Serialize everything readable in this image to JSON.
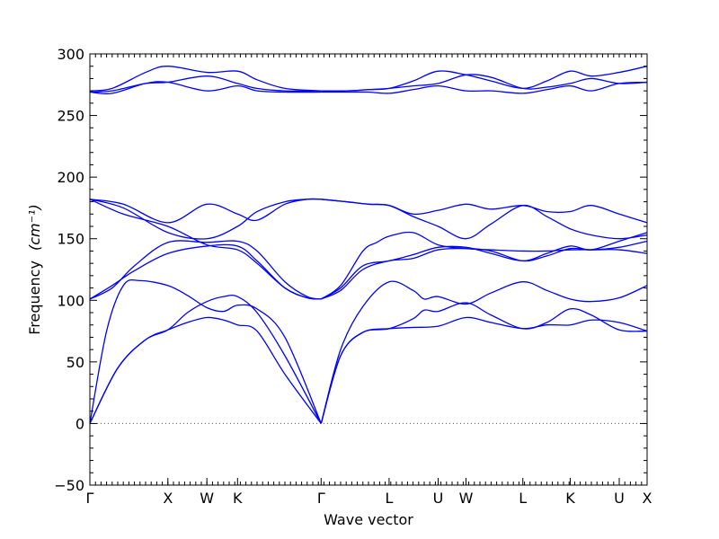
{
  "chart_data": {
    "type": "line",
    "xlabel": "Wave vector",
    "ylabel": "Frequency",
    "ylabel_unit": "(cm⁻¹)",
    "ylim": [
      -50,
      300
    ],
    "yticks": [
      -50,
      0,
      50,
      100,
      150,
      200,
      250,
      300
    ],
    "xlim": [
      0,
      1
    ],
    "xticks": [
      {
        "label": "Γ",
        "x": 0.0
      },
      {
        "label": "X",
        "x": 0.14
      },
      {
        "label": "W",
        "x": 0.21
      },
      {
        "label": "K",
        "x": 0.265
      },
      {
        "label": "Γ",
        "x": 0.415
      },
      {
        "label": "L",
        "x": 0.537
      },
      {
        "label": "U",
        "x": 0.625
      },
      {
        "label": "W",
        "x": 0.675
      },
      {
        "label": "L",
        "x": 0.777
      },
      {
        "label": "K",
        "x": 0.862
      },
      {
        "label": "U",
        "x": 0.95
      },
      {
        "label": "X",
        "x": 1.0
      }
    ],
    "zero_line": 0,
    "series": [
      {
        "x": [
          0.0,
          0.05,
          0.1,
          0.14,
          0.175,
          0.21,
          0.24,
          0.265,
          0.3,
          0.35,
          0.415
        ],
        "y": [
          0,
          45,
          68,
          76,
          82,
          86,
          84,
          80,
          75,
          40,
          0
        ]
      },
      {
        "x": [
          0.0,
          0.05,
          0.1,
          0.14,
          0.175,
          0.21,
          0.24,
          0.265,
          0.3,
          0.35,
          0.415
        ],
        "y": [
          0,
          45,
          68,
          76,
          90,
          99,
          103,
          103,
          90,
          55,
          0
        ]
      },
      {
        "x": [
          0.0,
          0.03,
          0.06,
          0.09,
          0.14,
          0.175,
          0.21,
          0.24,
          0.265,
          0.3,
          0.35,
          0.415
        ],
        "y": [
          0,
          75,
          112,
          116,
          112,
          104,
          94,
          91,
          96,
          93,
          70,
          0
        ]
      },
      {
        "x": [
          0.415,
          0.45,
          0.49,
          0.537,
          0.58,
          0.625,
          0.675,
          0.72,
          0.777,
          0.82,
          0.862,
          0.9,
          0.95,
          1.0
        ],
        "y": [
          0,
          55,
          74,
          77,
          78,
          79,
          86,
          82,
          77,
          80,
          80,
          84,
          82,
          75
        ]
      },
      {
        "x": [
          0.415,
          0.45,
          0.49,
          0.537,
          0.58,
          0.6,
          0.625,
          0.675,
          0.72,
          0.777,
          0.82,
          0.862,
          0.9,
          0.95,
          1.0
        ],
        "y": [
          0,
          55,
          74,
          77,
          85,
          92,
          91,
          98,
          88,
          77,
          82,
          93,
          88,
          76,
          75
        ]
      },
      {
        "x": [
          0.415,
          0.45,
          0.49,
          0.537,
          0.58,
          0.6,
          0.625,
          0.675,
          0.72,
          0.777,
          0.82,
          0.862,
          0.9,
          0.95,
          1.0
        ],
        "y": [
          0,
          60,
          95,
          115,
          108,
          101,
          103,
          97,
          106,
          115,
          108,
          101,
          99,
          102,
          112
        ]
      },
      {
        "x": [
          0.0,
          0.04,
          0.08,
          0.14,
          0.21,
          0.265,
          0.3,
          0.35,
          0.39,
          0.415
        ],
        "y": [
          101,
          110,
          128,
          147,
          147,
          148,
          140,
          115,
          103,
          101
        ]
      },
      {
        "x": [
          0.0,
          0.04,
          0.08,
          0.14,
          0.21,
          0.265,
          0.3,
          0.35,
          0.39,
          0.415
        ],
        "y": [
          101,
          112,
          124,
          138,
          144,
          144,
          132,
          110,
          102,
          101
        ]
      },
      {
        "x": [
          0.0,
          0.06,
          0.14,
          0.21,
          0.265,
          0.3,
          0.35,
          0.39,
          0.415
        ],
        "y": [
          182,
          170,
          160,
          145,
          141,
          130,
          110,
          102,
          101
        ]
      },
      {
        "x": [
          0.0,
          0.06,
          0.14,
          0.21,
          0.265,
          0.3,
          0.35,
          0.39,
          0.415
        ],
        "y": [
          182,
          178,
          163,
          178,
          170,
          165,
          178,
          182,
          182
        ]
      },
      {
        "x": [
          0.0,
          0.06,
          0.14,
          0.21,
          0.265,
          0.3,
          0.35,
          0.39,
          0.415
        ],
        "y": [
          182,
          175,
          155,
          150,
          160,
          172,
          180,
          182,
          182
        ]
      },
      {
        "x": [
          0.415,
          0.45,
          0.49,
          0.537,
          0.58,
          0.625,
          0.675,
          0.72,
          0.777,
          0.82,
          0.862,
          0.9,
          0.95,
          1.0
        ],
        "y": [
          101,
          108,
          125,
          132,
          134,
          141,
          142,
          140,
          132,
          136,
          142,
          141,
          143,
          148
        ]
      },
      {
        "x": [
          0.415,
          0.45,
          0.49,
          0.537,
          0.58,
          0.625,
          0.675,
          0.72,
          0.777,
          0.82,
          0.862,
          0.9,
          0.95,
          1.0
        ],
        "y": [
          101,
          110,
          128,
          132,
          137,
          143,
          143,
          138,
          132,
          138,
          144,
          141,
          148,
          155
        ]
      },
      {
        "x": [
          0.415,
          0.45,
          0.49,
          0.515,
          0.537,
          0.58,
          0.625,
          0.675,
          0.72,
          0.777,
          0.82,
          0.862,
          0.9,
          0.95,
          1.0
        ],
        "y": [
          101,
          112,
          140,
          147,
          152,
          155,
          145,
          142,
          141,
          140,
          140,
          141,
          141,
          141,
          138
        ]
      },
      {
        "x": [
          0.415,
          0.46,
          0.5,
          0.537,
          0.58,
          0.625,
          0.675,
          0.72,
          0.777,
          0.82,
          0.862,
          0.9,
          0.95,
          1.0
        ],
        "y": [
          182,
          180,
          178,
          177,
          168,
          160,
          150,
          162,
          177,
          168,
          158,
          153,
          150,
          153
        ]
      },
      {
        "x": [
          0.415,
          0.46,
          0.5,
          0.537,
          0.58,
          0.625,
          0.675,
          0.72,
          0.777,
          0.82,
          0.862,
          0.9,
          0.95,
          1.0
        ],
        "y": [
          182,
          180,
          178,
          177,
          170,
          173,
          178,
          174,
          177,
          172,
          172,
          177,
          170,
          163
        ]
      },
      {
        "x": [
          0.0,
          0.04,
          0.1,
          0.14,
          0.21,
          0.265,
          0.3,
          0.35,
          0.415
        ],
        "y": [
          269,
          270,
          276,
          277,
          282,
          276,
          272,
          270,
          270
        ]
      },
      {
        "x": [
          0.0,
          0.04,
          0.1,
          0.14,
          0.21,
          0.265,
          0.3,
          0.35,
          0.415
        ],
        "y": [
          270,
          272,
          285,
          290,
          285,
          286,
          279,
          272,
          270
        ]
      },
      {
        "x": [
          0.0,
          0.04,
          0.1,
          0.14,
          0.21,
          0.265,
          0.3,
          0.35,
          0.415
        ],
        "y": [
          269,
          268,
          276,
          277,
          270,
          274,
          270,
          269,
          269
        ]
      },
      {
        "x": [
          0.415,
          0.46,
          0.5,
          0.537,
          0.58,
          0.625,
          0.675,
          0.72,
          0.777,
          0.82,
          0.862,
          0.9,
          0.95,
          1.0
        ],
        "y": [
          270,
          270,
          271,
          272,
          278,
          286,
          283,
          278,
          272,
          278,
          286,
          282,
          285,
          290
        ]
      },
      {
        "x": [
          0.415,
          0.46,
          0.5,
          0.537,
          0.58,
          0.625,
          0.675,
          0.72,
          0.777,
          0.82,
          0.862,
          0.9,
          0.95,
          1.0
        ],
        "y": [
          270,
          270,
          271,
          272,
          274,
          276,
          283,
          281,
          272,
          273,
          276,
          280,
          276,
          277
        ]
      },
      {
        "x": [
          0.415,
          0.46,
          0.5,
          0.537,
          0.58,
          0.625,
          0.675,
          0.72,
          0.777,
          0.82,
          0.862,
          0.9,
          0.95,
          1.0
        ],
        "y": [
          269,
          269,
          269,
          268,
          271,
          274,
          270,
          270,
          268,
          271,
          274,
          270,
          276,
          277
        ]
      }
    ]
  }
}
